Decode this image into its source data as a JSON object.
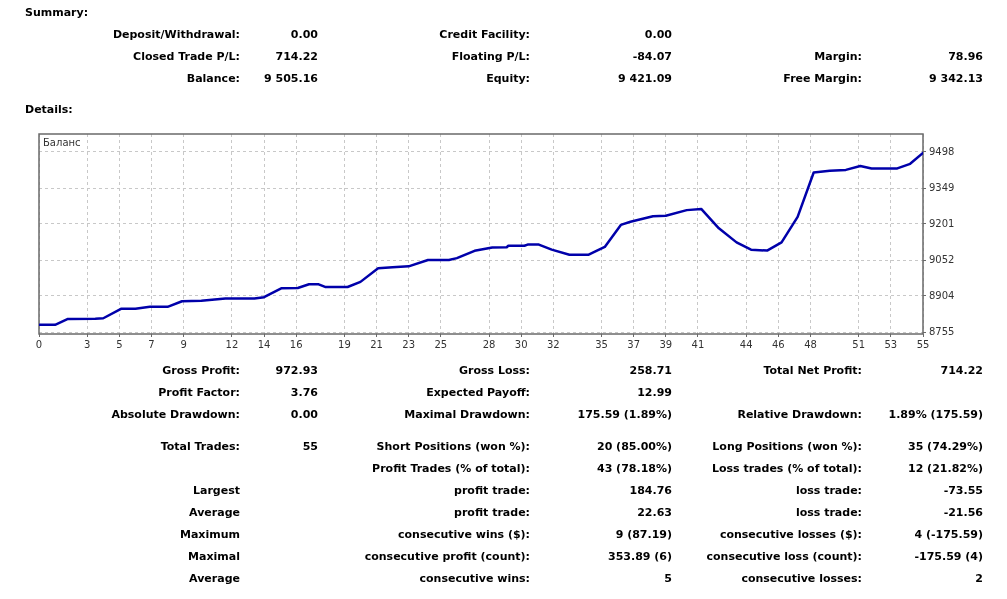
{
  "chart_data": [
    {
      "type": "other",
      "title": "Summary:",
      "annotations": [
        "Deposit/Withdrawal:",
        "0.00",
        "Credit Facility:",
        "0.00",
        "Closed Trade P/L:",
        "714.22",
        "Floating P/L:",
        "-84.07",
        "Margin:",
        "78.96",
        "Balance:",
        "9 505.16",
        "Equity:",
        "9 421.09",
        "Free Margin:",
        "9 342.13"
      ]
    },
    {
      "type": "line",
      "title": "Details:",
      "annotations": [
        "Баланс"
      ],
      "color": "#0000aa",
      "marker": "none",
      "grid": true,
      "x": [
        0,
        1.0,
        1.8,
        3.5,
        4.0,
        5.1,
        6.0,
        6.9,
        8.0,
        8.9,
        10.1,
        11.6,
        13.4,
        14.0,
        15.1,
        16.1,
        16.8,
        17.4,
        17.8,
        19.2,
        20.0,
        21.1,
        22.0,
        23.0,
        24.2,
        25.5,
        26.0,
        27.1,
        28.2,
        29.1,
        29.2,
        30.2,
        30.4,
        31.1,
        31.9,
        33.0,
        34.2,
        35.2,
        36.2,
        36.8,
        38.2,
        39.0,
        40.3,
        41.2,
        42.3,
        43.4,
        44.3,
        45.3,
        46.2,
        47.2,
        48.2,
        49.2,
        50.2,
        51.1,
        51.8,
        53.4,
        54.2,
        55
      ],
      "values": [
        8785,
        8785,
        8809,
        8810,
        8812,
        8851,
        8851,
        8859,
        8859,
        8882,
        8884,
        8893,
        8893,
        8899,
        8936,
        8937,
        8952,
        8952,
        8941,
        8941,
        8962,
        9018,
        9022,
        9026,
        9052,
        9052,
        9060,
        9090,
        9104,
        9105,
        9111,
        9111,
        9116,
        9116,
        9095,
        9074,
        9074,
        9106,
        9197,
        9210,
        9233,
        9235,
        9258,
        9263,
        9183,
        9125,
        9095,
        9091,
        9125,
        9230,
        9413,
        9420,
        9424,
        9440,
        9430,
        9430,
        9449,
        9494
      ],
      "xlim": [
        0,
        55
      ],
      "xticks": [
        0,
        3,
        5,
        7,
        9,
        12,
        14,
        16,
        19,
        21,
        23,
        25,
        28,
        30,
        32,
        35,
        37,
        39,
        41,
        44,
        46,
        48,
        51,
        53,
        55
      ],
      "ylim": [
        8747,
        9572
      ],
      "yticks": [
        8755,
        8904,
        9052,
        9201,
        9349,
        9498
      ]
    },
    {
      "type": "other",
      "annotations": [
        "Gross Profit:",
        "972.93",
        "Gross Loss:",
        "258.71",
        "Total Net Profit:",
        "714.22",
        "Profit Factor:",
        "3.76",
        "Expected Payoff:",
        "12.99",
        "Absolute Drawdown:",
        "0.00",
        "Maximal Drawdown:",
        "175.59 (1.89%)",
        "Relative Drawdown:",
        "1.89% (175.59)",
        "Total Trades:",
        "55",
        "Short Positions (won %):",
        "20 (85.00%)",
        "Long Positions (won %):",
        "35 (74.29%)",
        "Profit Trades (% of total):",
        "43 (78.18%)",
        "Loss trades (% of total):",
        "12 (21.82%)",
        "Largest",
        "profit trade:",
        "184.76",
        "loss trade:",
        "-73.55",
        "Average",
        "profit trade:",
        "22.63",
        "loss trade:",
        "-21.56",
        "Maximum",
        "consecutive wins ($):",
        "9 (87.19)",
        "consecutive losses ($):",
        "4 (-175.59)",
        "Maximal",
        "consecutive profit (count):",
        "353.89 (6)",
        "consecutive loss (count):",
        "-175.59 (4)",
        "Average",
        "consecutive wins:",
        "5",
        "consecutive losses:",
        "2"
      ]
    }
  ]
}
